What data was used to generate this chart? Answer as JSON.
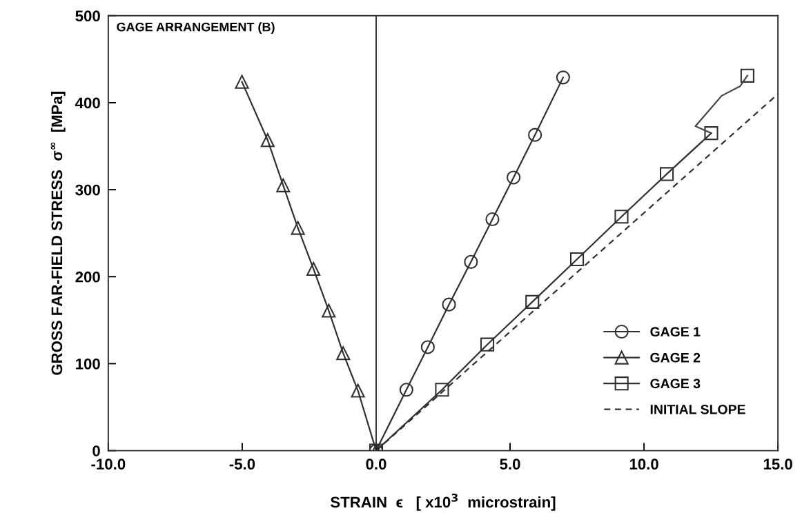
{
  "chart_data": {
    "type": "line",
    "xlabel": "STRAIN  ϵ   [ x10$^{3}$  microstrain]",
    "ylabel": "GROSS FAR-FIELD STRESS  σ$^{∞}$  [MPa]",
    "annotations": [
      "GAGE ARRANGEMENT (B)"
    ],
    "xlim": [
      -10,
      15
    ],
    "ylim": [
      0,
      500
    ],
    "xticks": [
      {
        "value": -10,
        "label": "-10.0"
      },
      {
        "value": -5,
        "label": "-5.0"
      },
      {
        "value": 0,
        "label": "0.0"
      },
      {
        "value": 5,
        "label": "5.0"
      },
      {
        "value": 10,
        "label": "10.0"
      },
      {
        "value": 15,
        "label": "15.0"
      }
    ],
    "yticks": [
      0,
      100,
      200,
      300,
      400,
      500
    ],
    "grid": false,
    "legend": "bottom right",
    "ref_lines": [
      {
        "axis": "x",
        "value": 0,
        "color": "#303030",
        "line_style": "solid"
      }
    ],
    "series": [
      {
        "name": "GAGE 1",
        "color": "#303030",
        "marker": "circle",
        "line_style": "solid",
        "x": [
          0,
          1.13,
          1.93,
          2.72,
          3.54,
          4.34,
          5.13,
          5.93,
          6.98
        ],
        "values": [
          0,
          70,
          119,
          168,
          217,
          266,
          314,
          363,
          429
        ]
      },
      {
        "name": "GAGE 2",
        "color": "#303030",
        "marker": "triangle",
        "line_style": "solid",
        "x": [
          0,
          -0.68,
          -1.23,
          -1.77,
          -2.34,
          -2.92,
          -3.47,
          -4.05,
          -5.01
        ],
        "values": [
          0,
          69,
          112,
          161,
          209,
          256,
          305,
          357,
          424
        ]
      },
      {
        "name": "GAGE 3",
        "color": "#303030",
        "marker": "square",
        "line_style": "solid",
        "x": [
          0,
          2.46,
          4.15,
          5.83,
          7.5,
          9.16,
          10.85,
          12.51,
          13.2,
          13.86
        ],
        "values": [
          0,
          70,
          122,
          171,
          220,
          269,
          318,
          365,
          null,
          431
        ]
      },
      {
        "color": "#454545",
        "marker": "none",
        "line_style": "solid",
        "x": [
          12.51,
          11.92,
          12.9,
          13.59,
          13.86
        ],
        "values": [
          365,
          373,
          408,
          419,
          431
        ]
      },
      {
        "name": "INITIAL SLOPE",
        "color": "#303030",
        "marker": "none",
        "line_style": "dashed",
        "x": [
          0,
          15
        ],
        "values": [
          0,
          410
        ]
      }
    ]
  }
}
